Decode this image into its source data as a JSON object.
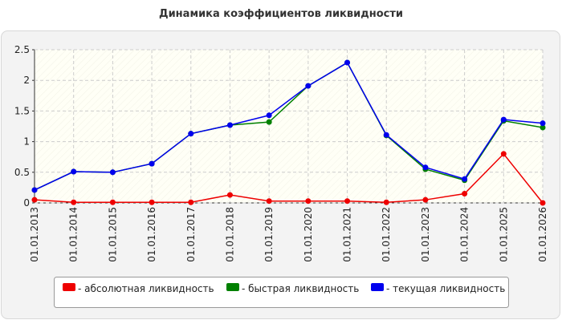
{
  "chart_data": {
    "type": "line",
    "title": "Динамика коэффициентов ликвидности",
    "categories": [
      "01.01.2013",
      "01.01.2014",
      "01.01.2015",
      "01.01.2016",
      "01.01.2017",
      "01.01.2018",
      "01.01.2019",
      "01.01.2020",
      "01.01.2021",
      "01.01.2022",
      "01.01.2023",
      "01.01.2024",
      "01.01.2025",
      "01.01.2026"
    ],
    "series": [
      {
        "name": "- абсолютная ликвидность",
        "color": "#ee0000",
        "values": [
          0.05,
          0.01,
          0.01,
          0.01,
          0.01,
          0.13,
          0.03,
          0.03,
          0.03,
          0.01,
          0.05,
          0.15,
          0.8,
          0.0
        ]
      },
      {
        "name": "- быстрая ликвидность",
        "color": "#008000",
        "values": [
          0.21,
          0.51,
          0.5,
          0.64,
          1.13,
          1.27,
          1.32,
          1.91,
          2.29,
          1.1,
          0.55,
          0.37,
          1.34,
          1.23
        ]
      },
      {
        "name": "- текущая ликвидность",
        "color": "#0000ee",
        "values": [
          0.21,
          0.51,
          0.5,
          0.64,
          1.13,
          1.27,
          1.43,
          1.91,
          2.29,
          1.11,
          0.58,
          0.39,
          1.36,
          1.3
        ]
      }
    ],
    "ylim": [
      0,
      2.5
    ],
    "yticks": [
      0,
      0.5,
      1,
      1.5,
      2,
      2.5
    ],
    "grid": true
  }
}
